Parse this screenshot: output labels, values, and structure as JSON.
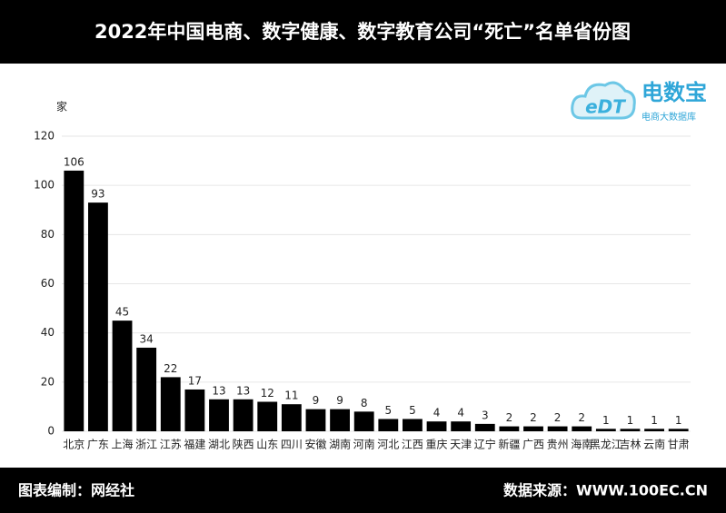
{
  "header": {
    "title": "2022年中国电商、数字健康、数字教育公司“死亡”名单省份图"
  },
  "logo": {
    "mark": "eDT",
    "name": "电数宝",
    "tagline": "电商大数据库"
  },
  "chart_data": {
    "type": "bar",
    "y_label": "家",
    "categories": [
      "北京",
      "广东",
      "上海",
      "浙江",
      "江苏",
      "福建",
      "湖北",
      "陕西",
      "山东",
      "四川",
      "安徽",
      "湖南",
      "河南",
      "河北",
      "江西",
      "重庆",
      "天津",
      "辽宁",
      "新疆",
      "广西",
      "贵州",
      "海南",
      "黑龙江",
      "吉林",
      "云南",
      "甘肃"
    ],
    "values": [
      106,
      93,
      45,
      34,
      22,
      17,
      13,
      13,
      12,
      11,
      9,
      9,
      8,
      5,
      5,
      4,
      4,
      3,
      2,
      2,
      2,
      2,
      1,
      1,
      1,
      1
    ],
    "color": "#000000",
    "ylim": [
      0,
      120
    ],
    "yticks": [
      0,
      20,
      40,
      60,
      80,
      100,
      120
    ],
    "grid": true
  },
  "footer": {
    "left": "图表编制：网经社",
    "right": "数据来源：WWW.100EC.CN"
  }
}
